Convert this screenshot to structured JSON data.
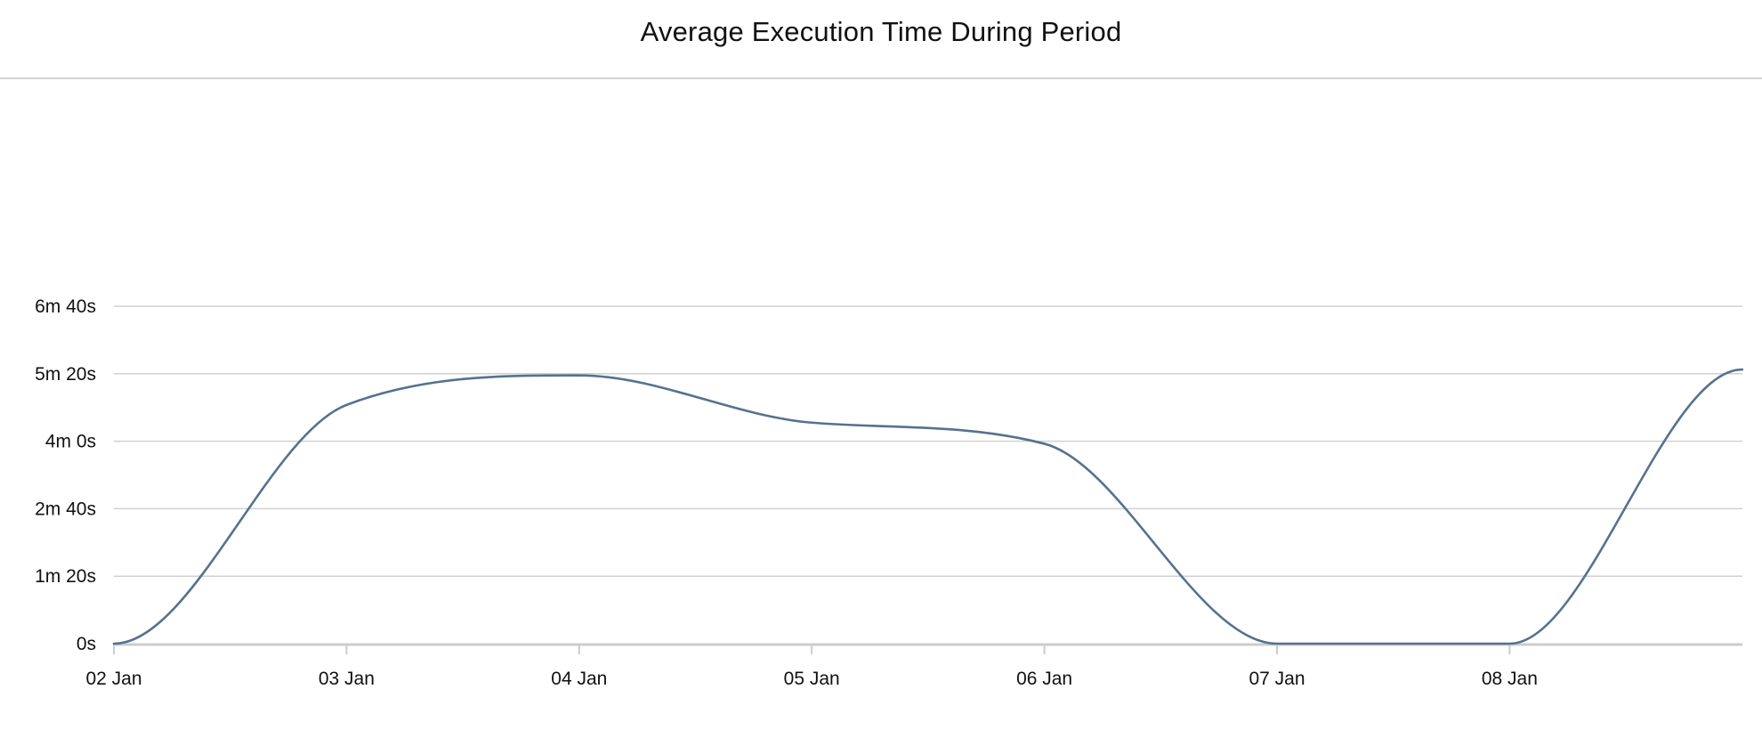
{
  "chart_data": {
    "type": "line",
    "title": "Average Execution Time During Period",
    "xlabel": "",
    "ylabel": "",
    "x": [
      "02 Jan",
      "03 Jan",
      "04 Jan",
      "05 Jan",
      "06 Jan",
      "07 Jan",
      "08 Jan",
      "09 Jan"
    ],
    "x_tick_labels": [
      "02 Jan",
      "03 Jan",
      "04 Jan",
      "05 Jan",
      "06 Jan",
      "07 Jan",
      "08 Jan"
    ],
    "y_ticks": [
      0,
      80,
      160,
      240,
      320,
      400
    ],
    "y_tick_labels": [
      "0s",
      "1m 20s",
      "2m 40s",
      "4m 0s",
      "5m 20s",
      "6m 40s"
    ],
    "ylim": [
      0,
      400
    ],
    "y_unit": "seconds",
    "series": [
      {
        "values": [
          0,
          283,
          318,
          262,
          237,
          0,
          0,
          325
        ],
        "color": "#56728e"
      }
    ],
    "grid": true,
    "legend": "none",
    "colors": {
      "line": "#56728e",
      "grid": "#d0d0d0",
      "axis": "#cccccc"
    }
  }
}
